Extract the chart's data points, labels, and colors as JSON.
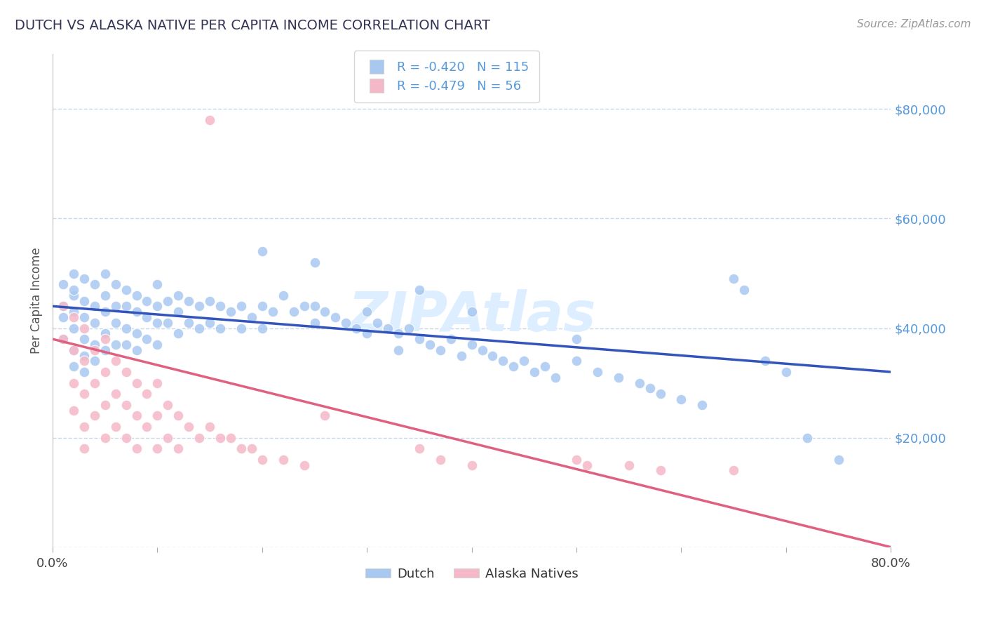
{
  "title": "DUTCH VS ALASKA NATIVE PER CAPITA INCOME CORRELATION CHART",
  "source_text": "Source: ZipAtlas.com",
  "ylabel": "Per Capita Income",
  "xlim": [
    0.0,
    0.8
  ],
  "ylim": [
    0,
    90000
  ],
  "yticks": [
    0,
    20000,
    40000,
    60000,
    80000
  ],
  "ytick_labels": [
    "",
    "$20,000",
    "$40,000",
    "$60,000",
    "$80,000"
  ],
  "xticks": [
    0.0,
    0.1,
    0.2,
    0.3,
    0.4,
    0.5,
    0.6,
    0.7,
    0.8
  ],
  "xtick_labels": [
    "0.0%",
    "",
    "",
    "",
    "",
    "",
    "",
    "",
    "80.0%"
  ],
  "blue_R": -0.42,
  "blue_N": 115,
  "pink_R": -0.479,
  "pink_N": 56,
  "blue_color": "#a8c8f0",
  "pink_color": "#f5b8c8",
  "blue_line_color": "#3355bb",
  "pink_line_color": "#e06080",
  "axis_label_color": "#5599dd",
  "title_color": "#333355",
  "watermark_color": "#dceeff",
  "background_color": "#ffffff",
  "grid_color": "#c8d8e8",
  "blue_line_x0": 0.0,
  "blue_line_y0": 44000,
  "blue_line_x1": 0.8,
  "blue_line_y1": 32000,
  "pink_line_x0": 0.0,
  "pink_line_y0": 38000,
  "pink_line_x1": 0.8,
  "pink_line_y1": 0,
  "blue_scatter_x": [
    0.01,
    0.01,
    0.01,
    0.01,
    0.02,
    0.02,
    0.02,
    0.02,
    0.02,
    0.02,
    0.02,
    0.03,
    0.03,
    0.03,
    0.03,
    0.03,
    0.03,
    0.04,
    0.04,
    0.04,
    0.04,
    0.04,
    0.05,
    0.05,
    0.05,
    0.05,
    0.05,
    0.06,
    0.06,
    0.06,
    0.06,
    0.07,
    0.07,
    0.07,
    0.07,
    0.08,
    0.08,
    0.08,
    0.08,
    0.09,
    0.09,
    0.09,
    0.1,
    0.1,
    0.1,
    0.1,
    0.11,
    0.11,
    0.12,
    0.12,
    0.12,
    0.13,
    0.13,
    0.14,
    0.14,
    0.15,
    0.15,
    0.16,
    0.16,
    0.17,
    0.18,
    0.18,
    0.19,
    0.2,
    0.2,
    0.21,
    0.22,
    0.23,
    0.24,
    0.25,
    0.25,
    0.26,
    0.27,
    0.28,
    0.29,
    0.3,
    0.3,
    0.31,
    0.32,
    0.33,
    0.33,
    0.34,
    0.35,
    0.36,
    0.37,
    0.38,
    0.39,
    0.4,
    0.41,
    0.42,
    0.43,
    0.44,
    0.45,
    0.46,
    0.47,
    0.48,
    0.5,
    0.52,
    0.54,
    0.56,
    0.57,
    0.58,
    0.6,
    0.62,
    0.65,
    0.66,
    0.68,
    0.7,
    0.72,
    0.75,
    0.2,
    0.25,
    0.35,
    0.4,
    0.5
  ],
  "blue_scatter_y": [
    48000,
    44000,
    42000,
    38000,
    50000,
    46000,
    43000,
    40000,
    36000,
    33000,
    47000,
    49000,
    45000,
    42000,
    38000,
    35000,
    32000,
    48000,
    44000,
    41000,
    37000,
    34000,
    50000,
    46000,
    43000,
    39000,
    36000,
    48000,
    44000,
    41000,
    37000,
    47000,
    44000,
    40000,
    37000,
    46000,
    43000,
    39000,
    36000,
    45000,
    42000,
    38000,
    48000,
    44000,
    41000,
    37000,
    45000,
    41000,
    46000,
    43000,
    39000,
    45000,
    41000,
    44000,
    40000,
    45000,
    41000,
    44000,
    40000,
    43000,
    44000,
    40000,
    42000,
    44000,
    40000,
    43000,
    46000,
    43000,
    44000,
    44000,
    41000,
    43000,
    42000,
    41000,
    40000,
    43000,
    39000,
    41000,
    40000,
    39000,
    36000,
    40000,
    38000,
    37000,
    36000,
    38000,
    35000,
    37000,
    36000,
    35000,
    34000,
    33000,
    34000,
    32000,
    33000,
    31000,
    34000,
    32000,
    31000,
    30000,
    29000,
    28000,
    27000,
    26000,
    49000,
    47000,
    34000,
    32000,
    20000,
    16000,
    54000,
    52000,
    47000,
    43000,
    38000
  ],
  "pink_scatter_x": [
    0.01,
    0.01,
    0.02,
    0.02,
    0.02,
    0.02,
    0.03,
    0.03,
    0.03,
    0.03,
    0.03,
    0.04,
    0.04,
    0.04,
    0.05,
    0.05,
    0.05,
    0.05,
    0.06,
    0.06,
    0.06,
    0.07,
    0.07,
    0.07,
    0.08,
    0.08,
    0.08,
    0.09,
    0.09,
    0.1,
    0.1,
    0.1,
    0.11,
    0.11,
    0.12,
    0.12,
    0.13,
    0.14,
    0.15,
    0.16,
    0.17,
    0.18,
    0.19,
    0.2,
    0.22,
    0.24,
    0.26,
    0.35,
    0.37,
    0.4,
    0.5,
    0.51,
    0.55,
    0.58,
    0.65,
    0.15
  ],
  "pink_scatter_y": [
    44000,
    38000,
    42000,
    36000,
    30000,
    25000,
    40000,
    34000,
    28000,
    22000,
    18000,
    36000,
    30000,
    24000,
    38000,
    32000,
    26000,
    20000,
    34000,
    28000,
    22000,
    32000,
    26000,
    20000,
    30000,
    24000,
    18000,
    28000,
    22000,
    30000,
    24000,
    18000,
    26000,
    20000,
    24000,
    18000,
    22000,
    20000,
    22000,
    20000,
    20000,
    18000,
    18000,
    16000,
    16000,
    15000,
    24000,
    18000,
    16000,
    15000,
    16000,
    15000,
    15000,
    14000,
    14000,
    78000
  ]
}
